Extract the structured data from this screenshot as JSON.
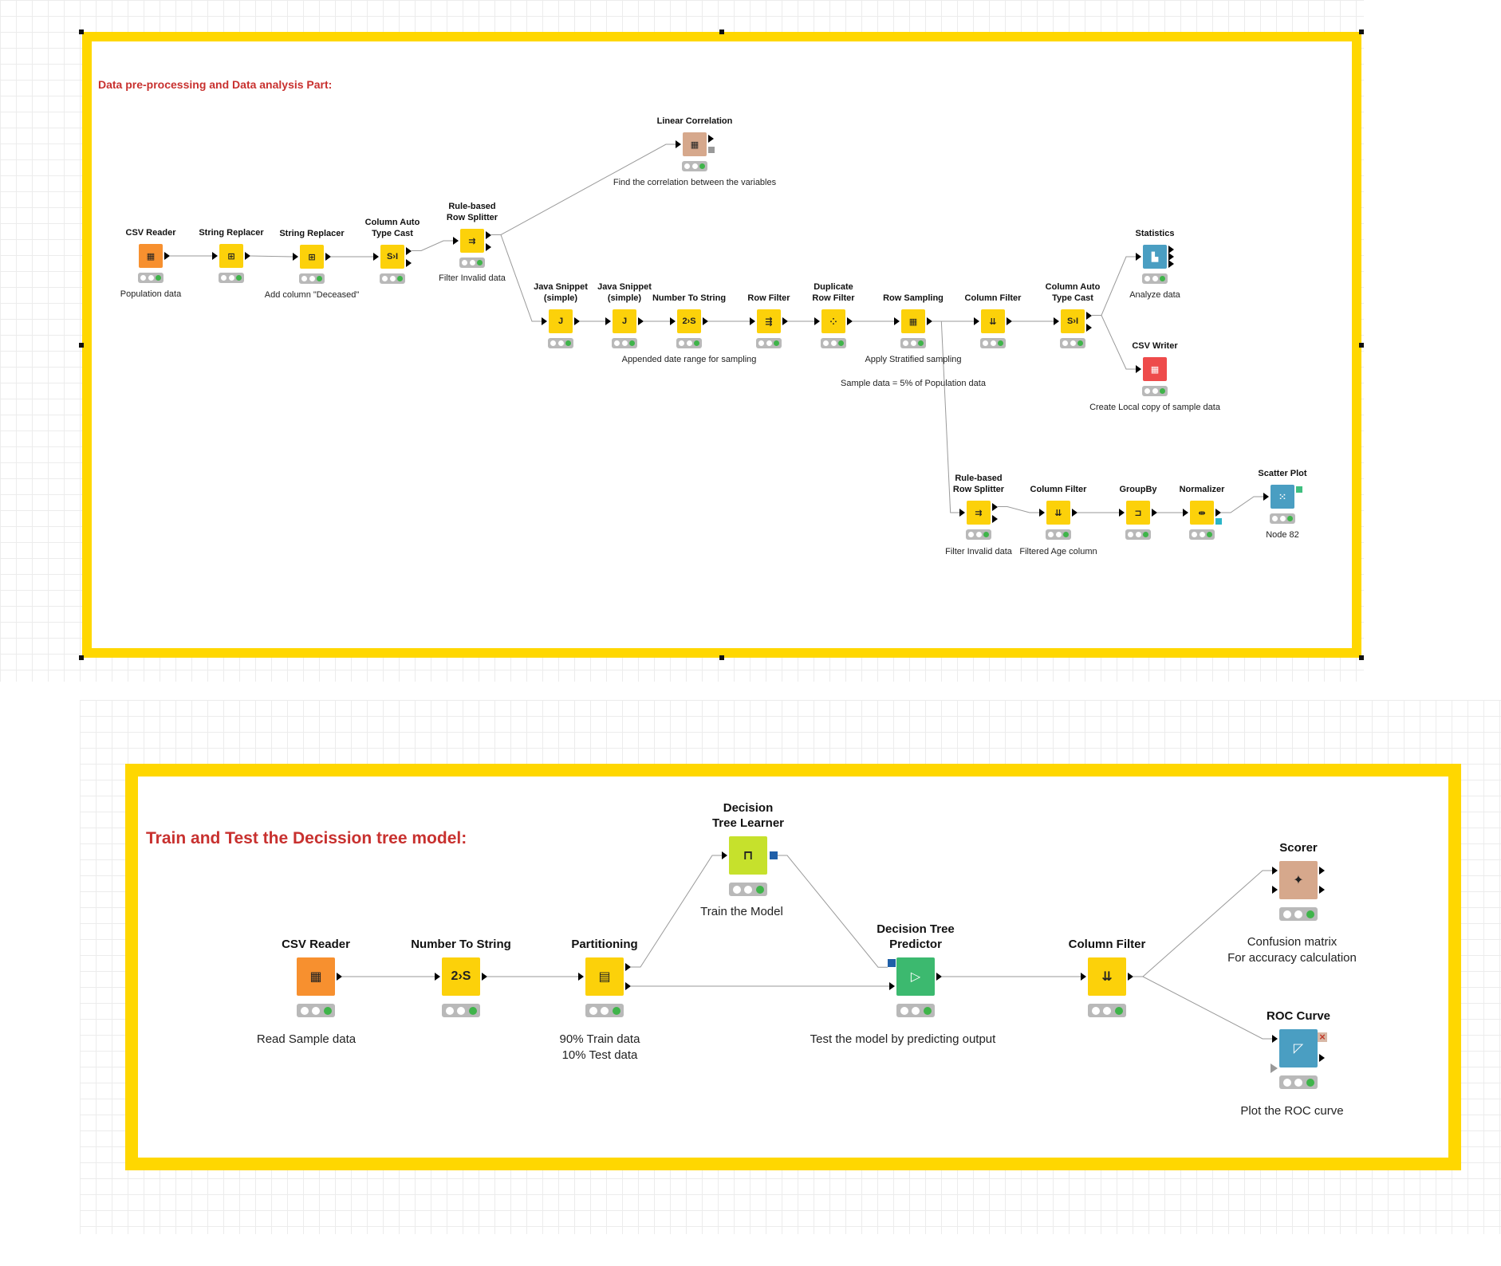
{
  "canvas": {
    "grid_color": "#ececec",
    "background": "#ffffff"
  },
  "annotation_top": {
    "title": "Data pre-processing and Data analysis Part:",
    "border_color": "#ffd700",
    "title_color": "#c8312f"
  },
  "annotation_bottom": {
    "title": "Train and Test the Decission tree model:",
    "border_color": "#ffd700",
    "title_color": "#c8312f"
  },
  "colors": {
    "source": "#f7902f",
    "manipulator": "#fcd10a",
    "learner": "#c6e12c",
    "predictor": "#3cb96f",
    "visualizer": "#4a9ec2",
    "other": "#d6a88c",
    "writer": "#ee4b4b",
    "status_green": "#3fb44a"
  },
  "top_nodes": [
    {
      "id": "csv-reader",
      "label": "CSV Reader",
      "comment": "Population data",
      "type": "source",
      "icon": "csv-reader-icon",
      "glyph": "▦"
    },
    {
      "id": "string-replacer-1",
      "label": "String Replacer",
      "comment": "",
      "type": "manipulator",
      "icon": "string-replacer-icon",
      "glyph": "⊞"
    },
    {
      "id": "string-replacer-2",
      "label": "String Replacer",
      "comment": "Add column \"Deceased\"",
      "type": "manipulator",
      "icon": "string-replacer-icon",
      "glyph": "⊞"
    },
    {
      "id": "column-auto-type-cast-1",
      "label": "Column Auto\nType Cast",
      "comment": "",
      "type": "manipulator",
      "icon": "type-cast-icon",
      "glyph": "S›I"
    },
    {
      "id": "rule-based-row-splitter-1",
      "label": "Rule-based\nRow Splitter",
      "comment": "Filter Invalid data",
      "type": "manipulator",
      "icon": "row-splitter-icon",
      "glyph": "⇉"
    },
    {
      "id": "linear-correlation",
      "label": "Linear Correlation",
      "comment": "Find the correlation between the variables",
      "type": "other",
      "icon": "correlation-icon",
      "glyph": "▦"
    },
    {
      "id": "java-snippet-1",
      "label": "Java Snippet\n(simple)",
      "comment": "",
      "type": "manipulator",
      "icon": "java-snippet-icon",
      "glyph": "J"
    },
    {
      "id": "java-snippet-2",
      "label": "Java Snippet\n(simple)",
      "comment": "",
      "type": "manipulator",
      "icon": "java-snippet-icon",
      "glyph": "J"
    },
    {
      "id": "number-to-string-1",
      "label": "Number To String",
      "comment": "Appended date range for sampling",
      "type": "manipulator",
      "icon": "number-to-string-icon",
      "glyph": "2›S"
    },
    {
      "id": "row-filter",
      "label": "Row Filter",
      "comment": "",
      "type": "manipulator",
      "icon": "row-filter-icon",
      "glyph": "⇶"
    },
    {
      "id": "duplicate-row-filter",
      "label": "Duplicate\nRow Filter",
      "comment": "",
      "type": "manipulator",
      "icon": "duplicate-filter-icon",
      "glyph": "⁘"
    },
    {
      "id": "row-sampling",
      "label": "Row Sampling",
      "comment": "Apply Stratified sampling\n\nSample data = 5% of Population data",
      "type": "manipulator",
      "icon": "row-sampling-icon",
      "glyph": "▦"
    },
    {
      "id": "column-filter-1",
      "label": "Column Filter",
      "comment": "",
      "type": "manipulator",
      "icon": "column-filter-icon",
      "glyph": "⇊"
    },
    {
      "id": "column-auto-type-cast-2",
      "label": "Column Auto\nType Cast",
      "comment": "",
      "type": "manipulator",
      "icon": "type-cast-icon",
      "glyph": "S›I"
    },
    {
      "id": "statistics",
      "label": "Statistics",
      "comment": "Analyze data",
      "type": "visualizer",
      "icon": "statistics-icon",
      "glyph": "▙"
    },
    {
      "id": "csv-writer",
      "label": "CSV Writer",
      "comment": "Create Local copy of sample data",
      "type": "writer",
      "icon": "csv-writer-icon",
      "glyph": "▦"
    },
    {
      "id": "rule-based-row-splitter-2",
      "label": "Rule-based\nRow Splitter",
      "comment": "Filter Invalid data",
      "type": "manipulator",
      "icon": "row-splitter-icon",
      "glyph": "⇉"
    },
    {
      "id": "column-filter-2",
      "label": "Column Filter",
      "comment": "Filtered Age column",
      "type": "manipulator",
      "icon": "column-filter-icon",
      "glyph": "⇊"
    },
    {
      "id": "groupby",
      "label": "GroupBy",
      "comment": "",
      "type": "manipulator",
      "icon": "groupby-icon",
      "glyph": "⊐"
    },
    {
      "id": "normalizer",
      "label": "Normalizer",
      "comment": "",
      "type": "manipulator",
      "icon": "normalizer-icon",
      "glyph": "⇹"
    },
    {
      "id": "scatter-plot",
      "label": "Scatter Plot",
      "comment": "Node 82",
      "type": "visualizer",
      "icon": "scatter-plot-icon",
      "glyph": "⁙"
    }
  ],
  "bottom_nodes": [
    {
      "id": "b-csv-reader",
      "label": "CSV Reader",
      "comment": "Read Sample data",
      "type": "source",
      "icon": "csv-reader-icon",
      "glyph": "▦"
    },
    {
      "id": "b-number-to-string",
      "label": "Number To String",
      "comment": "",
      "type": "manipulator",
      "icon": "number-to-string-icon",
      "glyph": "2›S"
    },
    {
      "id": "b-partitioning",
      "label": "Partitioning",
      "comment": "90% Train data\n10% Test data",
      "type": "manipulator",
      "icon": "partitioning-icon",
      "glyph": "▤"
    },
    {
      "id": "b-decision-tree-learner",
      "label": "Decision\nTree Learner",
      "comment": "Train the Model",
      "type": "learner",
      "icon": "decision-tree-learner-icon",
      "glyph": "⊓"
    },
    {
      "id": "b-decision-tree-predictor",
      "label": "Decision Tree\nPredictor",
      "comment": "Test the model by predicting output",
      "type": "predictor",
      "icon": "decision-tree-predictor-icon",
      "glyph": "▷"
    },
    {
      "id": "b-column-filter",
      "label": "Column Filter",
      "comment": "",
      "type": "manipulator",
      "icon": "column-filter-icon",
      "glyph": "⇊"
    },
    {
      "id": "b-scorer",
      "label": "Scorer",
      "comment": "Confusion matrix\nFor accuracy calculation",
      "type": "other",
      "icon": "scorer-icon",
      "glyph": "✦"
    },
    {
      "id": "b-roc-curve",
      "label": "ROC Curve",
      "comment": "Plot the ROC curve",
      "type": "visualizer",
      "icon": "roc-curve-icon",
      "glyph": "◸"
    }
  ]
}
